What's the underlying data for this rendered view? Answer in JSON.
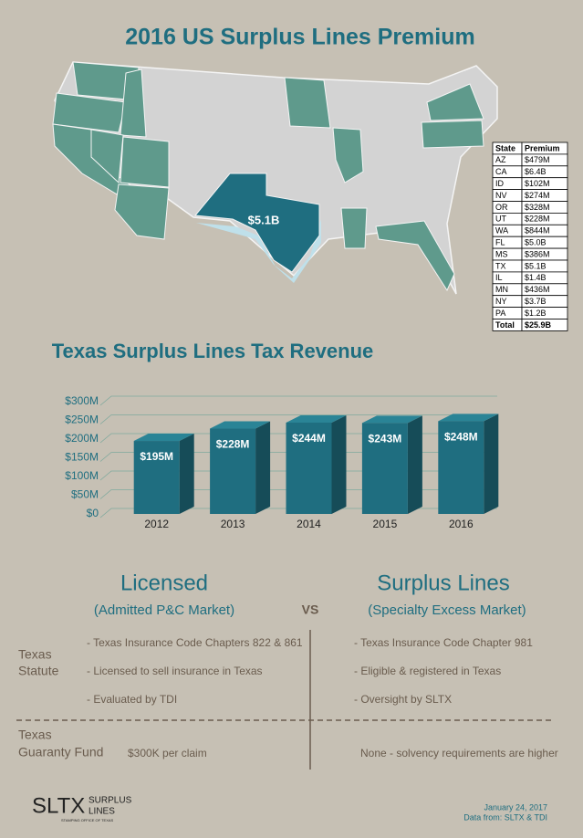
{
  "title": "2016 US Surplus Lines Premium",
  "map": {
    "label": "$5.1B"
  },
  "premium_table": {
    "header": [
      "State",
      "Premium"
    ],
    "rows": [
      [
        "AZ",
        "$479M"
      ],
      [
        "CA",
        "$6.4B"
      ],
      [
        "ID",
        "$102M"
      ],
      [
        "NV",
        "$274M"
      ],
      [
        "OR",
        "$328M"
      ],
      [
        "UT",
        "$228M"
      ],
      [
        "WA",
        "$844M"
      ],
      [
        "FL",
        "$5.0B"
      ],
      [
        "MS",
        "$386M"
      ],
      [
        "TX",
        "$5.1B"
      ],
      [
        "IL",
        "$1.4B"
      ],
      [
        "MN",
        "$436M"
      ],
      [
        "NY",
        "$3.7B"
      ],
      [
        "PA",
        "$1.2B"
      ]
    ],
    "total": [
      "Total",
      "$25.9B"
    ]
  },
  "chart_data": {
    "type": "bar",
    "title": "Texas Surplus Lines Tax Revenue",
    "categories": [
      "2012",
      "2013",
      "2014",
      "2015",
      "2016"
    ],
    "values": [
      195,
      228,
      244,
      243,
      248
    ],
    "value_labels": [
      "$195M",
      "$228M",
      "$244M",
      "$243M",
      "$248M"
    ],
    "color": "#1f6e80",
    "ylim": [
      0,
      300
    ],
    "yticks": [
      {
        "value": 0,
        "label": "$0"
      },
      {
        "value": 50,
        "label": "$50M"
      },
      {
        "value": 100,
        "label": "$100M"
      },
      {
        "value": 150,
        "label": "$150M"
      },
      {
        "value": 200,
        "label": "$200M"
      },
      {
        "value": 250,
        "label": "$250M"
      },
      {
        "value": 300,
        "label": "$300M"
      }
    ],
    "grid": true
  },
  "comparison": {
    "left": {
      "title": "Licensed",
      "subtitle": "(Admitted P&C Market)"
    },
    "vs": "VS",
    "right": {
      "title": "Surplus Lines",
      "subtitle": "(Specialty Excess Market)"
    },
    "rows": [
      {
        "label": [
          "Texas",
          "Statute"
        ],
        "left": [
          "- Texas Insurance Code Chapters 822 & 861",
          "- Licensed to sell insurance in Texas",
          "- Evaluated by TDI"
        ],
        "right": [
          "- Texas Insurance Code Chapter 981",
          "- Eligible & registered in Texas",
          "- Oversight by SLTX"
        ]
      },
      {
        "label": [
          "Texas",
          "Guaranty Fund"
        ],
        "left": [
          "$300K per claim"
        ],
        "right": [
          "None - solvency requirements are higher"
        ]
      }
    ]
  },
  "footer": {
    "logo": "SLTX",
    "logo_text": [
      "SURPLUS",
      "LINES"
    ],
    "tagline": "STAMPING OFFICE OF TEXAS",
    "date": "January 24, 2017",
    "source": "Data from: SLTX & TDI"
  }
}
